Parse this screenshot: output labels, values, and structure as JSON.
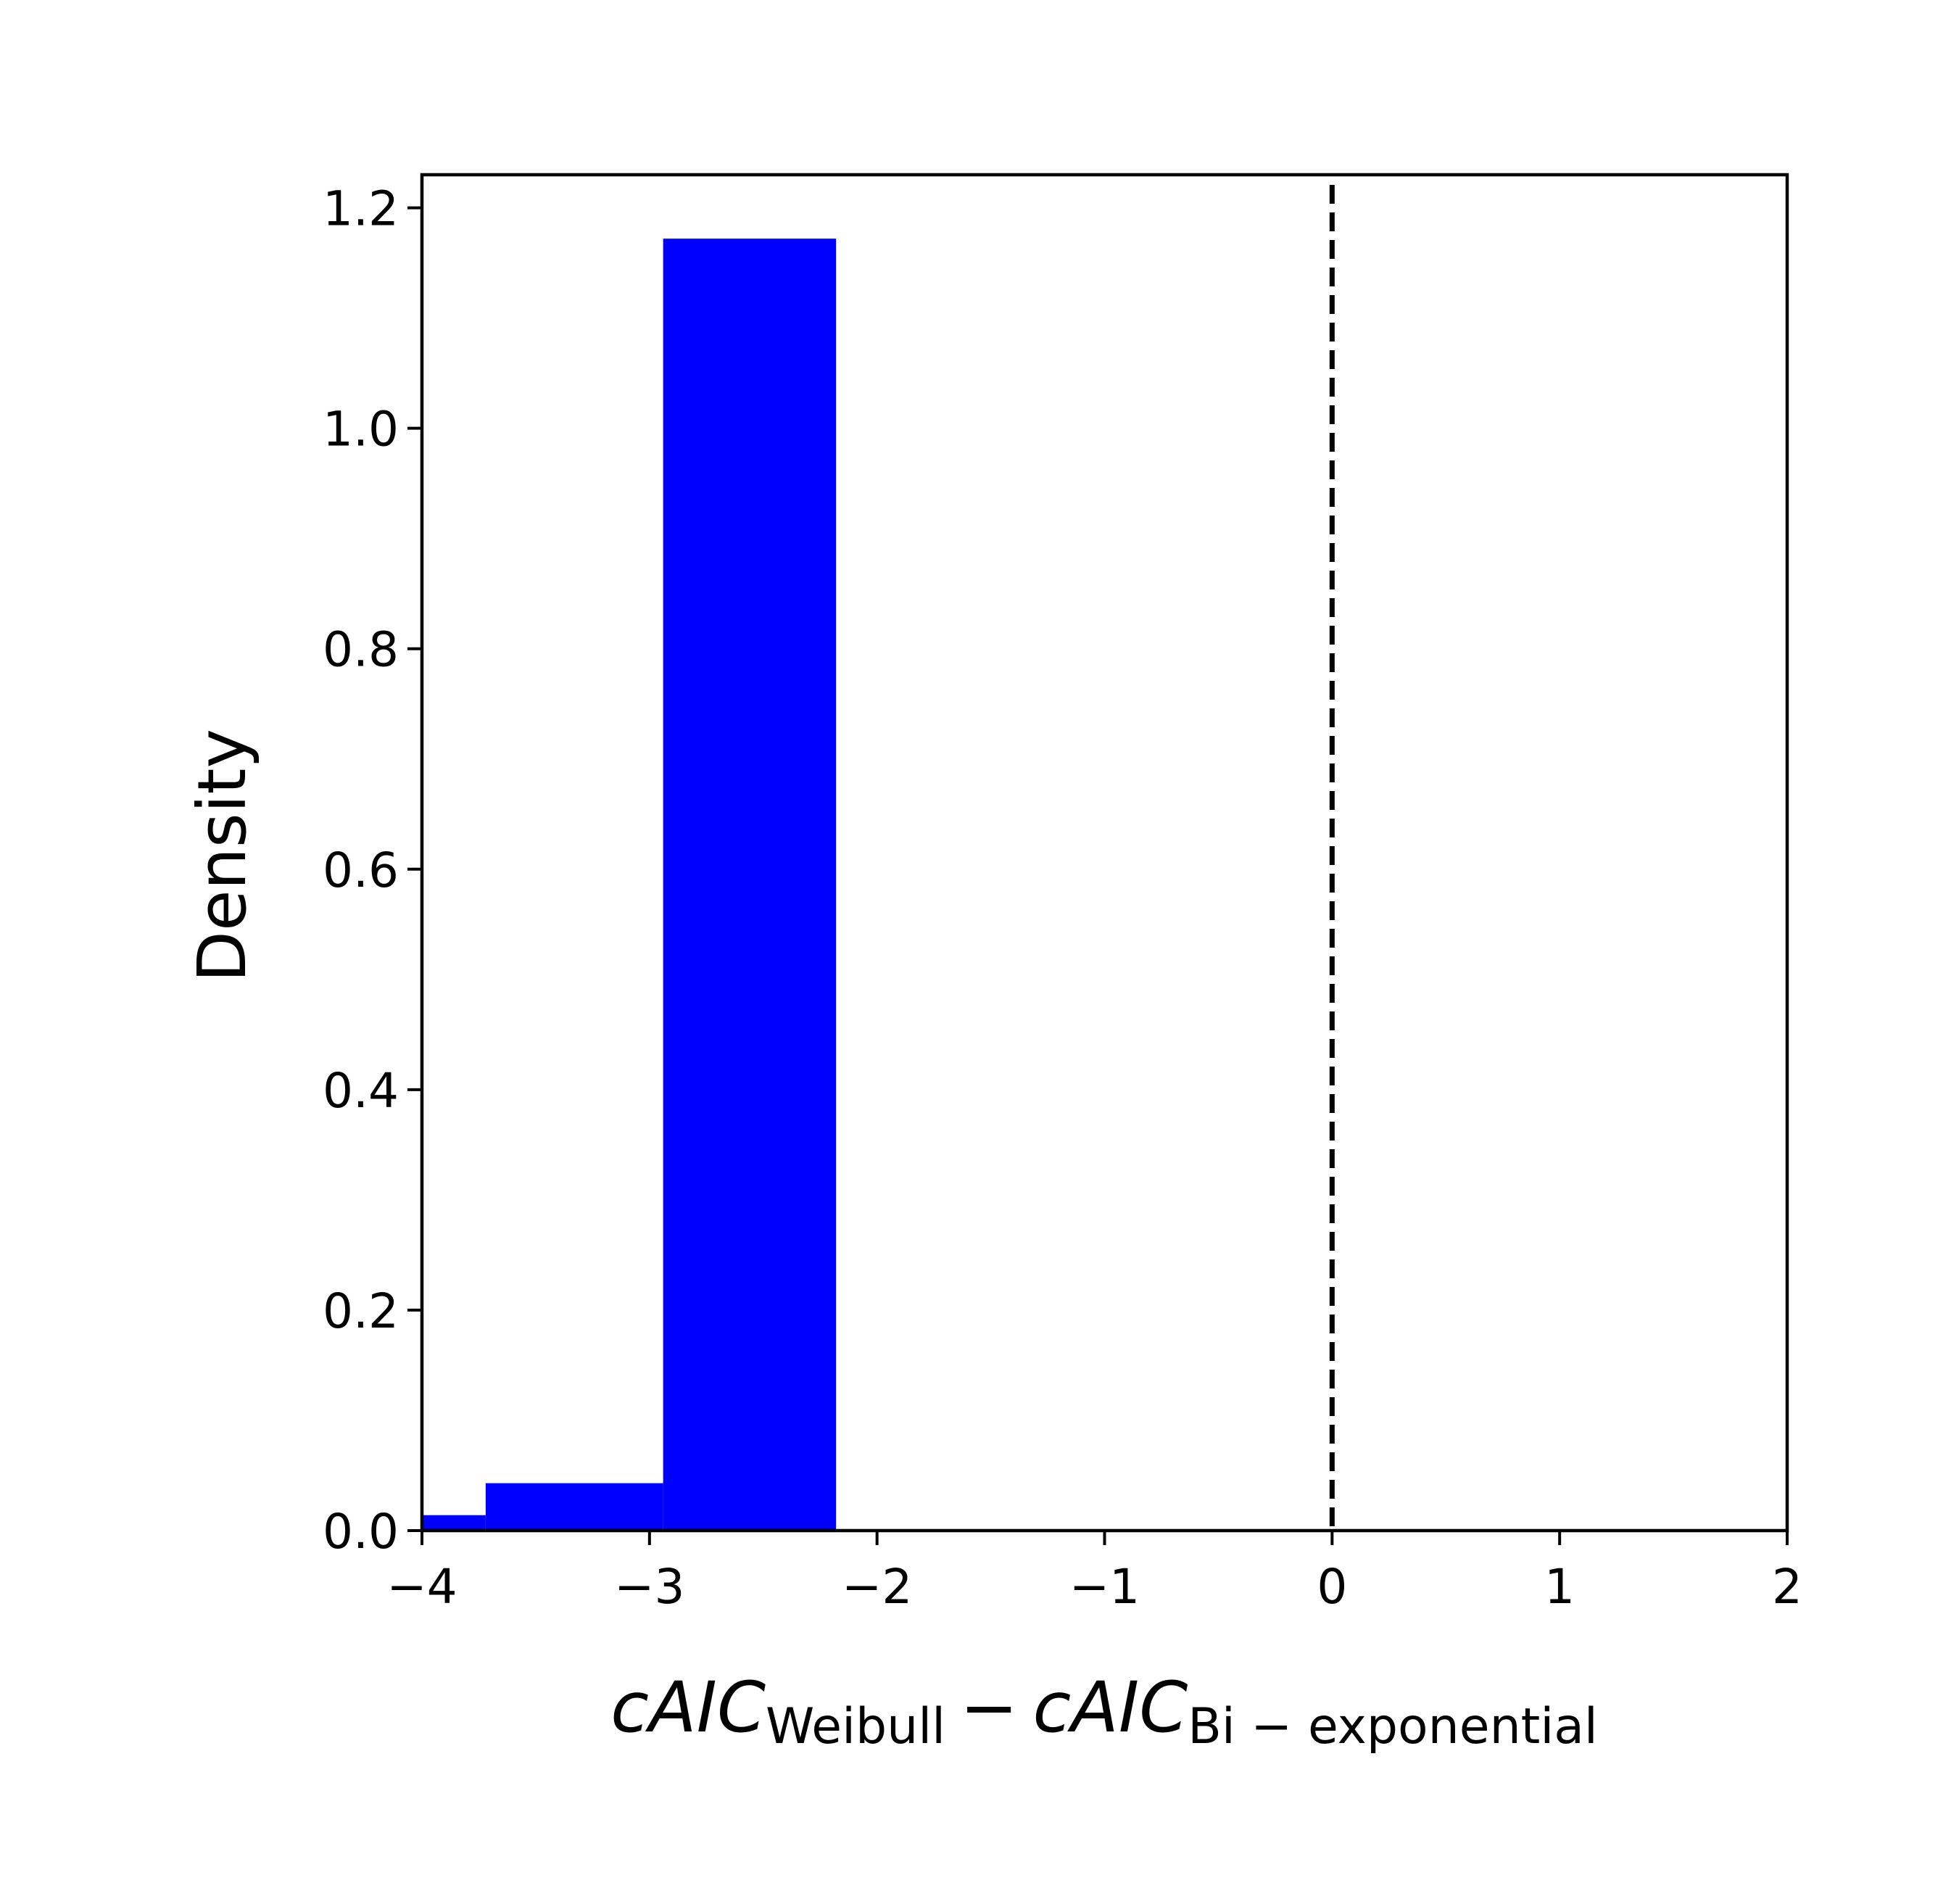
{
  "chart_data": {
    "type": "bar",
    "subtype": "histogram",
    "bins": [
      {
        "x0": -4.0,
        "x1": -3.72,
        "density": 0.014
      },
      {
        "x0": -3.72,
        "x1": -2.94,
        "density": 0.043
      },
      {
        "x0": -2.94,
        "x1": -2.18,
        "density": 1.172
      }
    ],
    "bar_color": "#0000ff",
    "reference_line": {
      "x": 0,
      "style": "dashed",
      "color": "#000000"
    },
    "xlim": [
      -4,
      2
    ],
    "ylim": [
      0,
      1.23
    ],
    "xticks": [
      -4,
      -3,
      -2,
      -1,
      0,
      1,
      2
    ],
    "xtick_labels": [
      "−4",
      "−3",
      "−2",
      "−1",
      "0",
      "1",
      "2"
    ],
    "yticks": [
      0.0,
      0.2,
      0.4,
      0.6,
      0.8,
      1.0,
      1.2
    ],
    "ytick_labels": [
      "0.0",
      "0.2",
      "0.4",
      "0.6",
      "0.8",
      "1.0",
      "1.2"
    ],
    "xlabel": {
      "term1": "cAIC",
      "sub1": "Weibull",
      "operator": "−",
      "term2": "cAIC",
      "sub2": "Bi − exponential"
    },
    "ylabel": "Density",
    "grid": false
  }
}
